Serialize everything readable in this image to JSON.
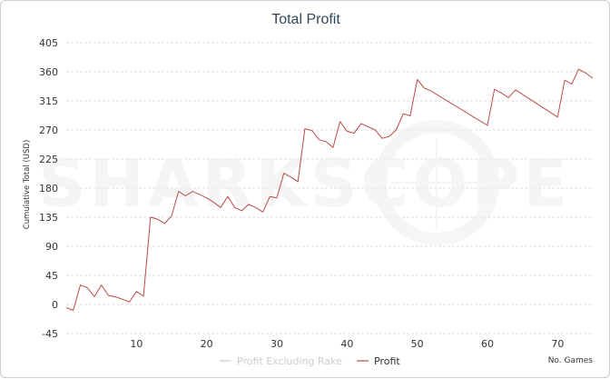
{
  "chart_data": {
    "type": "line",
    "title": "Total Profit",
    "xlabel": "No. Games",
    "ylabel": "Cumulative Total (USD)",
    "watermark": "SHARKSCOPE",
    "xlim": [
      0,
      75
    ],
    "ylim": [
      -45,
      405
    ],
    "x_ticks": [
      10,
      20,
      30,
      40,
      50,
      60,
      70
    ],
    "y_ticks": [
      -45,
      0,
      45,
      90,
      135,
      180,
      225,
      270,
      315,
      360,
      405
    ],
    "grid": true,
    "legend_position": "bottom",
    "colors": {
      "profit": "#b94a48",
      "profit_excluding_rake": "#cccccc",
      "grid": "#dddddd",
      "title": "#33475a"
    },
    "series": [
      {
        "name": "Profit Excluding Rake",
        "values": []
      },
      {
        "name": "Profit",
        "x": [
          0,
          1,
          2,
          3,
          4,
          5,
          6,
          7,
          8,
          9,
          10,
          11,
          12,
          13,
          14,
          15,
          16,
          17,
          18,
          19,
          20,
          21,
          22,
          23,
          24,
          25,
          26,
          27,
          28,
          29,
          30,
          31,
          32,
          33,
          34,
          35,
          36,
          37,
          38,
          39,
          40,
          41,
          42,
          43,
          44,
          45,
          46,
          47,
          48,
          49,
          50,
          51,
          52,
          60,
          61,
          62,
          63,
          64,
          70,
          71,
          72,
          73,
          74,
          75
        ],
        "values": [
          -5,
          -9,
          30,
          26,
          12,
          30,
          14,
          12,
          8,
          4,
          20,
          13,
          135,
          132,
          125,
          137,
          175,
          168,
          175,
          170,
          165,
          158,
          150,
          167,
          150,
          145,
          155,
          150,
          143,
          167,
          165,
          203,
          197,
          190,
          272,
          269,
          255,
          252,
          243,
          283,
          268,
          265,
          280,
          275,
          270,
          257,
          260,
          270,
          295,
          292,
          348,
          335,
          330,
          277,
          333,
          327,
          320,
          332,
          290,
          347,
          341,
          364,
          358,
          350
        ]
      }
    ]
  }
}
